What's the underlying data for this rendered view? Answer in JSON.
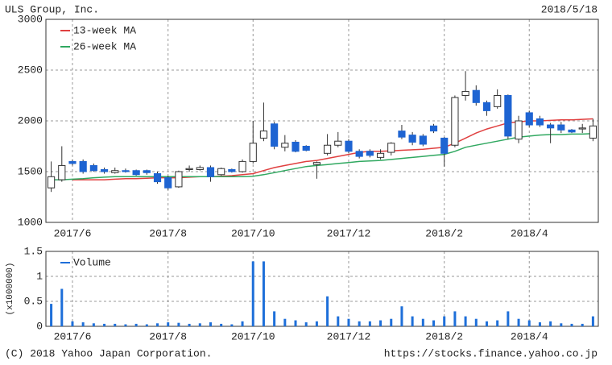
{
  "header": {
    "title": "ULS Group, Inc.",
    "date": "2018/5/18"
  },
  "chart_data": [
    {
      "type": "candlestick",
      "categories": [
        null,
        null,
        "2017/6",
        null,
        null,
        null,
        null,
        null,
        null,
        null,
        null,
        "2017/8",
        null,
        null,
        null,
        null,
        null,
        null,
        null,
        "2017/10",
        null,
        null,
        null,
        null,
        null,
        null,
        null,
        null,
        "2017/12",
        null,
        null,
        null,
        null,
        null,
        null,
        null,
        null,
        "2018/2",
        null,
        null,
        null,
        null,
        null,
        null,
        null,
        "2018/4",
        null,
        null,
        null,
        null,
        null,
        null
      ],
      "open": [
        1340,
        1420,
        1600,
        1600,
        1560,
        1520,
        1490,
        1510,
        1510,
        1510,
        1480,
        1440,
        1350,
        1520,
        1520,
        1540,
        1470,
        1520,
        1500,
        1600,
        1830,
        1970,
        1740,
        1790,
        1750,
        1570,
        1680,
        1760,
        1800,
        1700,
        1700,
        1640,
        1690,
        1900,
        1860,
        1850,
        1950,
        1830,
        1760,
        2250,
        2300,
        2180,
        2140,
        2250,
        1820,
        2080,
        2020,
        1960,
        1960,
        1910,
        1920,
        1830
      ],
      "high": [
        1600,
        1750,
        1620,
        1620,
        1580,
        1540,
        1540,
        1530,
        1520,
        1520,
        1500,
        1460,
        1510,
        1560,
        1560,
        1560,
        1540,
        1530,
        1620,
        2000,
        2180,
        1990,
        1860,
        1810,
        1760,
        1600,
        1870,
        1890,
        1820,
        1720,
        1720,
        1720,
        1790,
        1960,
        1890,
        1870,
        1970,
        1840,
        2250,
        2490,
        2350,
        2200,
        2310,
        2260,
        2050,
        2100,
        2050,
        1980,
        1990,
        1920,
        1970,
        2020
      ],
      "low": [
        1300,
        1400,
        1560,
        1480,
        1500,
        1480,
        1480,
        1490,
        1460,
        1470,
        1380,
        1320,
        1340,
        1500,
        1510,
        1400,
        1460,
        1490,
        1490,
        1580,
        1800,
        1720,
        1700,
        1690,
        1700,
        1430,
        1660,
        1740,
        1680,
        1630,
        1640,
        1620,
        1660,
        1820,
        1760,
        1750,
        1880,
        1550,
        1740,
        2200,
        2150,
        2050,
        2120,
        1820,
        1780,
        1940,
        1940,
        1780,
        1880,
        1880,
        1880,
        1800
      ],
      "close": [
        1450,
        1560,
        1580,
        1500,
        1510,
        1500,
        1510,
        1500,
        1470,
        1490,
        1400,
        1340,
        1500,
        1530,
        1540,
        1450,
        1530,
        1500,
        1600,
        1780,
        1900,
        1750,
        1780,
        1700,
        1710,
        1590,
        1760,
        1800,
        1700,
        1650,
        1660,
        1680,
        1780,
        1840,
        1790,
        1770,
        1900,
        1680,
        2230,
        2290,
        2180,
        2100,
        2250,
        1850,
        2000,
        1960,
        1960,
        1930,
        1910,
        1890,
        1930,
        1950
      ],
      "up_color": "#ffffff",
      "down_color": "#1e64d2",
      "series": [
        {
          "name": "13-week MA",
          "color": "#e04040",
          "values": [
            null,
            null,
            1420,
            1420,
            1420,
            1420,
            1425,
            1430,
            1430,
            1435,
            1440,
            1440,
            1440,
            1445,
            1450,
            1450,
            1455,
            1460,
            1470,
            1480,
            1510,
            1540,
            1560,
            1580,
            1600,
            1610,
            1630,
            1650,
            1670,
            1690,
            1700,
            1700,
            1705,
            1710,
            1715,
            1720,
            1730,
            1740,
            1780,
            1830,
            1880,
            1920,
            1950,
            1980,
            1990,
            2000,
            2000,
            2005,
            2010,
            2010,
            2015,
            2020
          ]
        },
        {
          "name": "26-week MA",
          "color": "#30a860",
          "values": [
            1420,
            1420,
            1425,
            1430,
            1440,
            1445,
            1450,
            1450,
            1450,
            1450,
            1450,
            1450,
            1450,
            1450,
            1450,
            1450,
            1450,
            1450,
            1450,
            1455,
            1470,
            1490,
            1510,
            1530,
            1550,
            1560,
            1570,
            1580,
            1590,
            1600,
            1605,
            1610,
            1620,
            1630,
            1640,
            1650,
            1660,
            1670,
            1700,
            1740,
            1760,
            1780,
            1800,
            1820,
            1840,
            1850,
            1860,
            1865,
            1865,
            1870,
            1870,
            1875
          ]
        }
      ],
      "ylim": [
        1000,
        3000
      ],
      "yticks": [
        1000,
        1500,
        2000,
        2500,
        3000
      ],
      "grid": true
    },
    {
      "type": "bar",
      "categories": [
        null,
        null,
        "2017/6",
        null,
        null,
        null,
        null,
        null,
        null,
        null,
        null,
        "2017/8",
        null,
        null,
        null,
        null,
        null,
        null,
        null,
        "2017/10",
        null,
        null,
        null,
        null,
        null,
        null,
        null,
        null,
        "2017/12",
        null,
        null,
        null,
        null,
        null,
        null,
        null,
        null,
        "2018/2",
        null,
        null,
        null,
        null,
        null,
        null,
        null,
        "2018/4",
        null,
        null,
        null,
        null,
        null,
        null
      ],
      "y_label": "(x1000000)",
      "series": [
        {
          "name": "Volume",
          "color": "#1e6fd9",
          "values": [
            0.45,
            0.75,
            0.1,
            0.08,
            0.06,
            0.05,
            0.05,
            0.04,
            0.05,
            0.04,
            0.06,
            0.08,
            0.07,
            0.05,
            0.06,
            0.08,
            0.05,
            0.04,
            0.1,
            1.3,
            1.3,
            0.3,
            0.15,
            0.12,
            0.08,
            0.1,
            0.6,
            0.2,
            0.15,
            0.1,
            0.1,
            0.12,
            0.15,
            0.4,
            0.2,
            0.15,
            0.12,
            0.2,
            0.3,
            0.2,
            0.15,
            0.1,
            0.12,
            0.3,
            0.15,
            0.12,
            0.08,
            0.1,
            0.06,
            0.05,
            0.05,
            0.2
          ]
        }
      ],
      "ylim": [
        0,
        1.5
      ],
      "yticks": [
        0,
        0.5,
        1,
        1.5
      ],
      "grid": true
    }
  ],
  "footer": {
    "copyright": "(C) 2018 Yahoo Japan Corporation.",
    "url": "https://stocks.finance.yahoo.co.jp"
  }
}
